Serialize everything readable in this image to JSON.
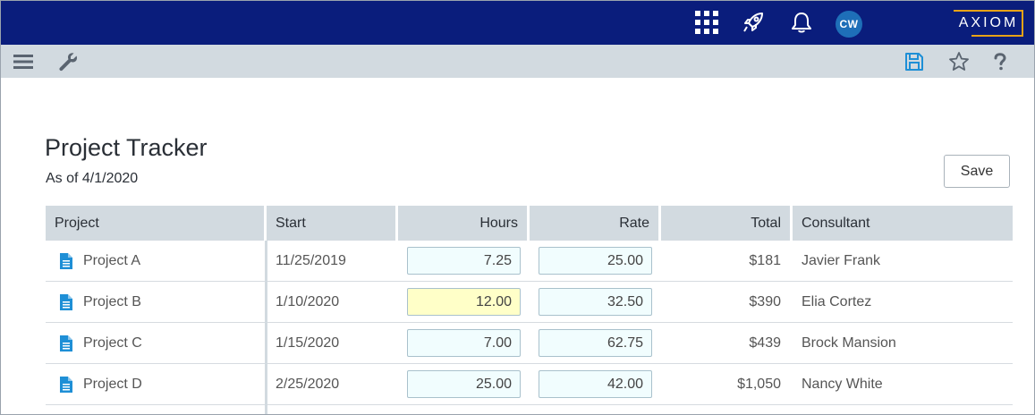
{
  "header": {
    "avatar_initials": "CW",
    "logo_text": "AXIOM"
  },
  "icons": {
    "apps": "apps-grid-icon",
    "launch": "rocket-icon",
    "notifications": "bell-icon",
    "menu": "hamburger-menu-icon",
    "tools": "wrench-icon",
    "save": "floppy-disk-icon",
    "favorite": "star-icon",
    "help": "question-mark-icon",
    "document": "document-icon"
  },
  "colors": {
    "topbar": "#0a1d7c",
    "toolbar": "#d2dae0",
    "accent": "#1e8fd6",
    "logo_border": "#e8a317",
    "input_bg": "#f1fdfe",
    "input_highlight": "#ffffc8"
  },
  "page": {
    "title": "Project Tracker",
    "subtitle": "As of 4/1/2020",
    "save_label": "Save"
  },
  "table": {
    "columns": [
      "Project",
      "Start",
      "Hours",
      "Rate",
      "Total",
      "Consultant"
    ],
    "rows": [
      {
        "project": "Project A",
        "start": "11/25/2019",
        "hours": "7.25",
        "rate": "25.00",
        "total": "$181",
        "consultant": "Javier Frank"
      },
      {
        "project": "Project B",
        "start": "1/10/2020",
        "hours": "12.00",
        "rate": "32.50",
        "total": "$390",
        "consultant": "Elia Cortez"
      },
      {
        "project": "Project C",
        "start": "1/15/2020",
        "hours": "7.00",
        "rate": "62.75",
        "total": "$439",
        "consultant": "Brock Mansion"
      },
      {
        "project": "Project D",
        "start": "2/25/2020",
        "hours": "25.00",
        "rate": "42.00",
        "total": "$1,050",
        "consultant": "Nancy White"
      }
    ]
  }
}
